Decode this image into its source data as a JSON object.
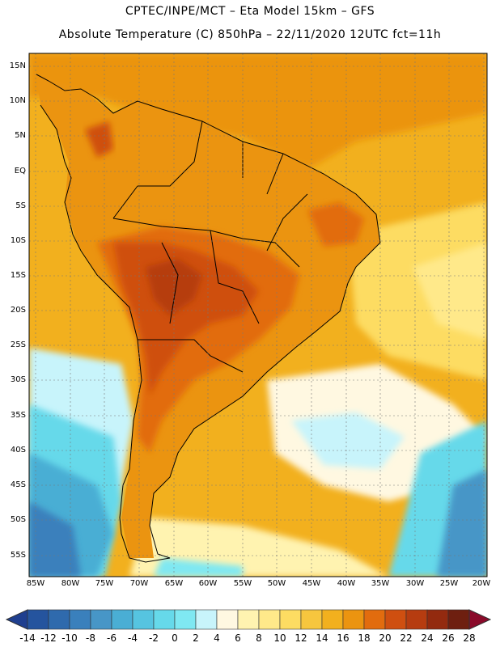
{
  "header": {
    "line1": "CPTEC/INPE/MCT –  Eta Model 15km – GFS",
    "line2": "Absolute Temperature (C) 850hPa – 22/11/2020 12UTC fct=11h"
  },
  "axes": {
    "lat_labels": [
      "15N",
      "10N",
      "5N",
      "EQ",
      "5S",
      "10S",
      "15S",
      "20S",
      "25S",
      "30S",
      "35S",
      "40S",
      "45S",
      "50S",
      "55S"
    ],
    "lon_labels": [
      "85W",
      "80W",
      "75W",
      "70W",
      "65W",
      "60W",
      "55W",
      "50W",
      "45W",
      "40W",
      "35W",
      "30W",
      "25W",
      "20W"
    ]
  },
  "colorbar": {
    "labels": [
      "-14",
      "-12",
      "-10",
      "-8",
      "-6",
      "-4",
      "-2",
      "0",
      "2",
      "4",
      "6",
      "8",
      "10",
      "12",
      "14",
      "16",
      "18",
      "20",
      "22",
      "24",
      "26",
      "28"
    ],
    "colors": [
      "#1f3f8f",
      "#25549e",
      "#2f6aad",
      "#3a80bc",
      "#4796c7",
      "#4aaed4",
      "#56c4e0",
      "#66d9ea",
      "#7fe8f2",
      "#c8f4fb",
      "#fff8e1",
      "#fff3b0",
      "#ffe98a",
      "#fddc62",
      "#f7c63e",
      "#f2b01e",
      "#eb9410",
      "#e26c0e",
      "#cf4f10",
      "#b63c10",
      "#932a0f",
      "#6e1f10",
      "#8a0a2a"
    ]
  },
  "map": {
    "legend_colors": {
      "ocean_warm": "#f2b01e",
      "ocean_cool": "#c8f4fb",
      "land_hot": "#cf4f10",
      "land_warm": "#eb9410",
      "cold_south": "#4aaed4",
      "coast": "#000000",
      "grid": "#777777"
    }
  }
}
